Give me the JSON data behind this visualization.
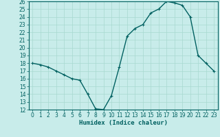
{
  "x_values": [
    0,
    1,
    2,
    3,
    4,
    5,
    6,
    7,
    8,
    9,
    10,
    11,
    12,
    13,
    14,
    15,
    16,
    17,
    18,
    19,
    20,
    21,
    22,
    23
  ],
  "y_values": [
    18.0,
    17.8,
    17.5,
    17.0,
    16.5,
    16.0,
    15.8,
    14.0,
    12.1,
    12.0,
    13.8,
    17.5,
    21.5,
    22.5,
    23.0,
    24.5,
    25.0,
    26.0,
    25.8,
    25.5,
    24.0,
    19.0,
    18.0,
    17.0
  ],
  "line_color": "#006060",
  "marker": "+",
  "marker_size": 3,
  "bg_color": "#c8ecea",
  "grid_color": "#a8d8d0",
  "xlabel": "Humidex (Indice chaleur)",
  "ylabel": "",
  "xlim": [
    -0.5,
    23.5
  ],
  "ylim": [
    12,
    26
  ],
  "yticks": [
    12,
    13,
    14,
    15,
    16,
    17,
    18,
    19,
    20,
    21,
    22,
    23,
    24,
    25,
    26
  ],
  "xticks": [
    0,
    1,
    2,
    3,
    4,
    5,
    6,
    7,
    8,
    9,
    10,
    11,
    12,
    13,
    14,
    15,
    16,
    17,
    18,
    19,
    20,
    21,
    22,
    23
  ],
  "tick_color": "#006060",
  "axis_color": "#006060",
  "font_color": "#006060",
  "line_width": 1.0,
  "font_size_ticks": 5.5,
  "font_size_xlabel": 6.5
}
